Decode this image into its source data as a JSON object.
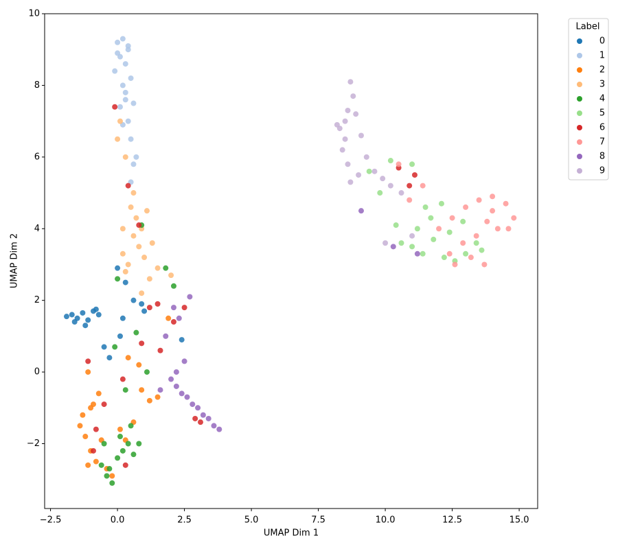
{
  "chart_data": {
    "type": "scatter",
    "xlabel": "UMAP Dim 1",
    "ylabel": "UMAP Dim 2",
    "xlim": [
      -2.72,
      15.69
    ],
    "ylim": [
      -3.81,
      10
    ],
    "xticks": [
      {
        "value": -2.5,
        "label": "−2.5"
      },
      {
        "value": 0,
        "label": "0.0"
      },
      {
        "value": 2.5,
        "label": "2.5"
      },
      {
        "value": 5,
        "label": "5.0"
      },
      {
        "value": 7.5,
        "label": "7.5"
      },
      {
        "value": 10,
        "label": "10.0"
      },
      {
        "value": 12.5,
        "label": "12.5"
      },
      {
        "value": 15,
        "label": "15.0"
      }
    ],
    "yticks": [
      {
        "value": -2,
        "label": "−2"
      },
      0,
      2,
      4,
      6,
      8,
      10
    ],
    "grid": false,
    "legend": "outside",
    "legend_title": "Label",
    "series": [
      {
        "name": "0",
        "color": "#1f77b4",
        "x": [
          -1.9,
          -1.7,
          -1.5,
          -1.3,
          -1.1,
          -0.9,
          -0.7,
          -1.6,
          -1.2,
          -0.8,
          -0.5,
          0.0,
          0.3,
          0.1,
          0.6,
          0.9,
          -0.3,
          2.4,
          0.2,
          1.0
        ],
        "y": [
          1.55,
          1.6,
          1.5,
          1.65,
          1.45,
          1.7,
          1.6,
          1.4,
          1.3,
          1.75,
          0.7,
          2.9,
          2.5,
          1.0,
          2.0,
          1.9,
          0.4,
          0.9,
          1.5,
          1.7
        ]
      },
      {
        "name": "1",
        "color": "#aec7e8",
        "x": [
          0.0,
          0.2,
          0.4,
          0.1,
          0.3,
          -0.1,
          0.2,
          0.5,
          0.3,
          0.1,
          0.4,
          0.6,
          0.5,
          0.7,
          0.2,
          0.0,
          0.3,
          0.4,
          0.6,
          0.5
        ],
        "y": [
          9.2,
          9.3,
          9.1,
          8.8,
          8.6,
          8.4,
          8.0,
          8.2,
          7.6,
          7.4,
          7.0,
          7.5,
          6.5,
          6.0,
          6.9,
          8.9,
          7.8,
          9.0,
          5.8,
          5.3
        ]
      },
      {
        "name": "2",
        "color": "#ff7f0e",
        "x": [
          -1.4,
          -1.2,
          -1.0,
          -0.8,
          -0.6,
          -1.3,
          -1.1,
          -0.9,
          -0.4,
          -0.2,
          0.1,
          0.3,
          -0.7,
          -1.0,
          0.6,
          0.9,
          1.2,
          1.5,
          0.8,
          -1.1,
          1.9,
          0.4
        ],
        "y": [
          -1.5,
          -1.8,
          -2.2,
          -2.5,
          -1.9,
          -1.2,
          -2.6,
          -0.9,
          -2.7,
          -2.9,
          -1.6,
          -1.9,
          -0.6,
          -1.0,
          -1.4,
          -0.5,
          -0.8,
          -0.7,
          0.2,
          0.0,
          1.5,
          0.4
        ]
      },
      {
        "name": "3",
        "color": "#ffbb78",
        "x": [
          0.5,
          0.7,
          0.9,
          1.1,
          0.6,
          0.8,
          1.0,
          0.4,
          0.3,
          1.3,
          1.5,
          0.2,
          0.1,
          0.0,
          0.3,
          1.2,
          0.6,
          2.0,
          0.9,
          0.2
        ],
        "y": [
          4.6,
          4.3,
          4.0,
          4.5,
          3.8,
          3.5,
          3.2,
          3.0,
          2.8,
          3.6,
          2.9,
          4.0,
          7.0,
          6.5,
          6.0,
          2.6,
          5.0,
          2.7,
          2.2,
          3.3
        ]
      },
      {
        "name": "4",
        "color": "#2ca02c",
        "x": [
          -0.6,
          -0.4,
          -0.2,
          0.0,
          0.2,
          0.4,
          0.6,
          -0.3,
          0.1,
          0.5,
          -0.5,
          0.8,
          -0.1,
          0.3,
          1.1,
          1.8,
          0.0,
          0.7,
          2.1,
          0.9
        ],
        "y": [
          -2.6,
          -2.9,
          -3.1,
          -2.4,
          -2.2,
          -2.0,
          -2.3,
          -2.7,
          -1.8,
          -1.5,
          -2.0,
          -2.0,
          0.7,
          -0.5,
          0.0,
          2.9,
          2.6,
          1.1,
          2.4,
          4.1
        ]
      },
      {
        "name": "5",
        "color": "#98df8a",
        "x": [
          10.6,
          11.0,
          11.4,
          11.8,
          12.2,
          12.6,
          13.0,
          13.4,
          11.2,
          11.7,
          12.4,
          12.9,
          10.4,
          11.5,
          9.4,
          9.8,
          10.2,
          13.6,
          12.1,
          11.0
        ],
        "y": [
          3.6,
          3.5,
          3.3,
          3.7,
          3.2,
          3.1,
          3.3,
          3.6,
          4.0,
          4.3,
          3.9,
          4.2,
          4.1,
          4.6,
          5.6,
          5.0,
          5.9,
          3.4,
          4.7,
          5.8
        ]
      },
      {
        "name": "6",
        "color": "#d62728",
        "x": [
          -0.1,
          0.4,
          0.8,
          1.2,
          1.5,
          -1.1,
          -0.5,
          0.2,
          0.9,
          1.6,
          2.1,
          2.9,
          3.1,
          -0.8,
          0.3,
          10.5,
          10.9,
          11.1,
          2.5,
          -0.9
        ],
        "y": [
          7.4,
          5.2,
          4.1,
          1.8,
          1.9,
          0.3,
          -0.9,
          -0.2,
          0.8,
          0.6,
          1.4,
          -1.3,
          -1.4,
          -1.6,
          -2.6,
          5.7,
          5.2,
          5.5,
          1.8,
          -2.2
        ]
      },
      {
        "name": "7",
        "color": "#ff9896",
        "x": [
          12.0,
          12.5,
          13.0,
          13.5,
          14.0,
          14.5,
          14.8,
          14.6,
          14.2,
          13.8,
          13.4,
          12.9,
          12.4,
          13.2,
          13.7,
          10.5,
          10.9,
          11.4,
          12.6,
          14.0
        ],
        "y": [
          4.0,
          4.3,
          4.6,
          4.8,
          4.9,
          4.7,
          4.3,
          4.0,
          4.0,
          4.2,
          3.8,
          3.6,
          3.3,
          3.2,
          3.0,
          5.8,
          4.8,
          5.2,
          3.0,
          4.5
        ]
      },
      {
        "name": "8",
        "color": "#9467bd",
        "x": [
          2.0,
          2.2,
          2.4,
          2.6,
          2.8,
          3.0,
          3.2,
          3.4,
          3.6,
          3.8,
          2.1,
          2.3,
          2.5,
          1.8,
          1.6,
          2.7,
          2.2,
          9.1,
          10.3,
          11.2
        ],
        "y": [
          -0.2,
          -0.4,
          -0.6,
          -0.7,
          -0.9,
          -1.0,
          -1.2,
          -1.3,
          -1.5,
          -1.6,
          1.8,
          1.5,
          0.3,
          1.0,
          -0.5,
          2.1,
          0.0,
          4.5,
          3.5,
          3.3
        ]
      },
      {
        "name": "9",
        "color": "#c5b0d5",
        "x": [
          8.7,
          8.8,
          8.6,
          8.5,
          8.3,
          8.9,
          9.1,
          8.4,
          8.2,
          8.6,
          9.3,
          9.6,
          9.9,
          10.2,
          10.6,
          8.7,
          9.0,
          8.5,
          10.0,
          11.0
        ],
        "y": [
          8.1,
          7.7,
          7.3,
          7.0,
          6.8,
          7.2,
          6.6,
          6.2,
          6.9,
          5.8,
          6.0,
          5.6,
          5.4,
          5.2,
          5.0,
          5.3,
          5.5,
          6.5,
          3.6,
          3.8
        ]
      }
    ]
  }
}
